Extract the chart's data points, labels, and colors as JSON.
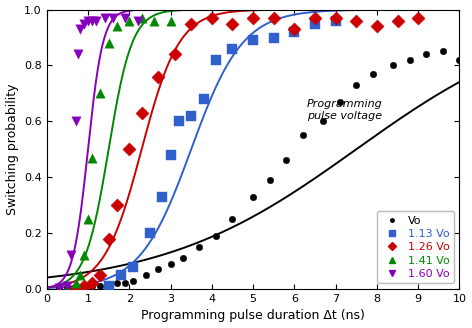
{
  "xlabel": "Programming pulse duration Δt (ns)",
  "ylabel": "Switching probability",
  "xlim": [
    0,
    10
  ],
  "ylim": [
    0,
    1.0
  ],
  "xticks": [
    0,
    1,
    2,
    3,
    4,
    5,
    6,
    7,
    8,
    9,
    10
  ],
  "yticks": [
    0.0,
    0.2,
    0.4,
    0.6,
    0.8,
    1.0
  ],
  "annotation": "Programming\npulse voltage",
  "bg_color": "#ffffff",
  "series": [
    {
      "label": "Vo",
      "color": "black",
      "marker": "o",
      "markersize": 3.5,
      "curve_color": "black",
      "t0": 7.5,
      "k": 0.42,
      "scatter_x": [
        0.3,
        0.5,
        0.7,
        0.9,
        1.1,
        1.3,
        1.5,
        1.7,
        1.9,
        2.1,
        2.4,
        2.7,
        3.0,
        3.3,
        3.7,
        4.1,
        4.5,
        5.0,
        5.4,
        5.8,
        6.2,
        6.7,
        7.1,
        7.5,
        7.9,
        8.4,
        8.8,
        9.2,
        9.6,
        10.0
      ],
      "scatter_y": [
        0.005,
        0.005,
        0.005,
        0.01,
        0.01,
        0.01,
        0.01,
        0.02,
        0.02,
        0.03,
        0.05,
        0.07,
        0.09,
        0.11,
        0.15,
        0.19,
        0.25,
        0.33,
        0.39,
        0.46,
        0.55,
        0.6,
        0.67,
        0.73,
        0.77,
        0.8,
        0.82,
        0.84,
        0.85,
        0.82
      ]
    },
    {
      "label": "1.13 Vo",
      "color": "#3060CC",
      "marker": "s",
      "markersize": 5,
      "curve_color": "#3060CC",
      "t0": 3.5,
      "k": 1.6,
      "scatter_x": [
        1.5,
        1.8,
        2.1,
        2.5,
        2.8,
        3.0,
        3.2,
        3.5,
        3.8,
        4.1,
        4.5,
        5.0,
        5.5,
        6.0,
        6.5,
        7.0
      ],
      "scatter_y": [
        0.01,
        0.05,
        0.08,
        0.2,
        0.33,
        0.48,
        0.6,
        0.62,
        0.68,
        0.82,
        0.86,
        0.89,
        0.9,
        0.92,
        0.95,
        0.96
      ]
    },
    {
      "label": "1.26 Vo",
      "color": "#CC0000",
      "marker": "D",
      "markersize": 5,
      "curve_color": "#CC0000",
      "t0": 2.3,
      "k": 2.2,
      "scatter_x": [
        0.7,
        0.9,
        1.1,
        1.3,
        1.5,
        1.7,
        2.0,
        2.3,
        2.7,
        3.1,
        3.5,
        4.0,
        4.5,
        5.0,
        5.5,
        6.0,
        6.5,
        7.0,
        7.5,
        8.0,
        8.5,
        9.0
      ],
      "scatter_y": [
        0.005,
        0.01,
        0.02,
        0.05,
        0.18,
        0.3,
        0.5,
        0.63,
        0.76,
        0.84,
        0.95,
        0.97,
        0.95,
        0.97,
        0.97,
        0.93,
        0.97,
        0.97,
        0.96,
        0.94,
        0.96,
        0.97
      ]
    },
    {
      "label": "1.41 Vo",
      "color": "#008800",
      "marker": "^",
      "markersize": 5,
      "curve_color": "#008800",
      "t0": 1.5,
      "k": 3.5,
      "scatter_x": [
        0.5,
        0.7,
        0.8,
        0.9,
        1.0,
        1.1,
        1.3,
        1.5,
        1.7,
        2.0,
        2.3,
        2.6,
        3.0
      ],
      "scatter_y": [
        0.005,
        0.02,
        0.05,
        0.12,
        0.25,
        0.47,
        0.7,
        0.88,
        0.94,
        0.96,
        0.97,
        0.96,
        0.96
      ]
    },
    {
      "label": "1.60 Vo",
      "color": "#8800BB",
      "marker": "v",
      "markersize": 5,
      "curve_color": "#8800BB",
      "t0": 1.0,
      "k": 5.5,
      "scatter_x": [
        0.3,
        0.5,
        0.6,
        0.7,
        0.75,
        0.8,
        0.9,
        1.0,
        1.1,
        1.2,
        1.4,
        1.6,
        1.9,
        2.2
      ],
      "scatter_y": [
        0.005,
        0.01,
        0.12,
        0.6,
        0.84,
        0.93,
        0.95,
        0.96,
        0.96,
        0.96,
        0.97,
        0.97,
        0.97,
        0.96
      ]
    }
  ]
}
